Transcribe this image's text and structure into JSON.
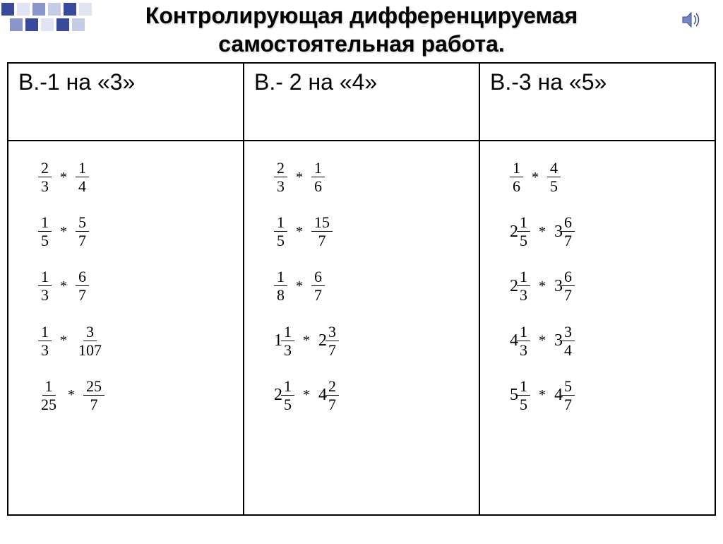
{
  "colors": {
    "deco_dark": "#3a4a9a",
    "deco_mid": "#8a96c8",
    "deco_light": "#c4cce6",
    "deco_pale": "#e0e4f2",
    "title": "#000000",
    "border": "#000000",
    "text": "#000000",
    "bg": "#ffffff"
  },
  "title_lines": [
    "Контролирующая дифференцируемая",
    "самостоятельная работа."
  ],
  "title_fontsize": 32,
  "header_fontsize": 32,
  "expr_fontsize": 24,
  "frac_fontsize": 22,
  "columns": [
    {
      "header": "В.-1 на «3»",
      "problems": [
        {
          "left": {
            "n": "2",
            "d": "3"
          },
          "op": "*",
          "right": {
            "n": "1",
            "d": "4"
          }
        },
        {
          "left": {
            "n": "1",
            "d": "5"
          },
          "op": "*",
          "right": {
            "n": "5",
            "d": "7"
          }
        },
        {
          "left": {
            "n": "1",
            "d": "3"
          },
          "op": "*",
          "right": {
            "n": "6",
            "d": "7"
          }
        },
        {
          "left": {
            "n": "1",
            "d": "3"
          },
          "op": "*",
          "right": {
            "n": "3",
            "d": "107"
          }
        },
        {
          "left": {
            "n": "1",
            "d": "25"
          },
          "op": "*",
          "right": {
            "n": "25",
            "d": "7"
          }
        }
      ]
    },
    {
      "header": "В.- 2 на «4»",
      "problems": [
        {
          "left": {
            "n": "2",
            "d": "3"
          },
          "op": "*",
          "right": {
            "n": "1",
            "d": "6"
          }
        },
        {
          "left": {
            "n": "1",
            "d": "5"
          },
          "op": "*",
          "right": {
            "n": "15",
            "d": "7"
          }
        },
        {
          "left": {
            "n": "1",
            "d": "8"
          },
          "op": "*",
          "right": {
            "n": "6",
            "d": "7"
          }
        },
        {
          "left": {
            "w": "1",
            "n": "1",
            "d": "3"
          },
          "op": "*",
          "right": {
            "w": "2",
            "n": "3",
            "d": "7"
          }
        },
        {
          "left": {
            "w": "2",
            "n": "1",
            "d": "5"
          },
          "op": "*",
          "right": {
            "w": "4",
            "n": "2",
            "d": "7"
          }
        }
      ]
    },
    {
      "header": "В.-3 на «5»",
      "problems": [
        {
          "left": {
            "n": "1",
            "d": "6"
          },
          "op": "*",
          "right": {
            "n": "4",
            "d": "5"
          }
        },
        {
          "left": {
            "w": "2",
            "n": "1",
            "d": "5"
          },
          "op": "*",
          "right": {
            "w": "3",
            "n": "6",
            "d": "7"
          }
        },
        {
          "left": {
            "w": "2",
            "n": "1",
            "d": "3"
          },
          "op": "*",
          "right": {
            "w": "3",
            "n": "6",
            "d": "7"
          }
        },
        {
          "left": {
            "w": "4",
            "n": "1",
            "d": "3"
          },
          "op": "*",
          "right": {
            "w": "3",
            "n": "3",
            "d": "4"
          }
        },
        {
          "left": {
            "w": "5",
            "n": "1",
            "d": "5"
          },
          "op": "*",
          "right": {
            "w": "4",
            "n": "5",
            "d": "7"
          }
        }
      ]
    }
  ],
  "deco_rows": [
    [
      "dark",
      "pale",
      "mid",
      "light",
      "dark",
      "pale"
    ],
    [
      "mid",
      "dark",
      "pale",
      "dark",
      "light"
    ]
  ]
}
